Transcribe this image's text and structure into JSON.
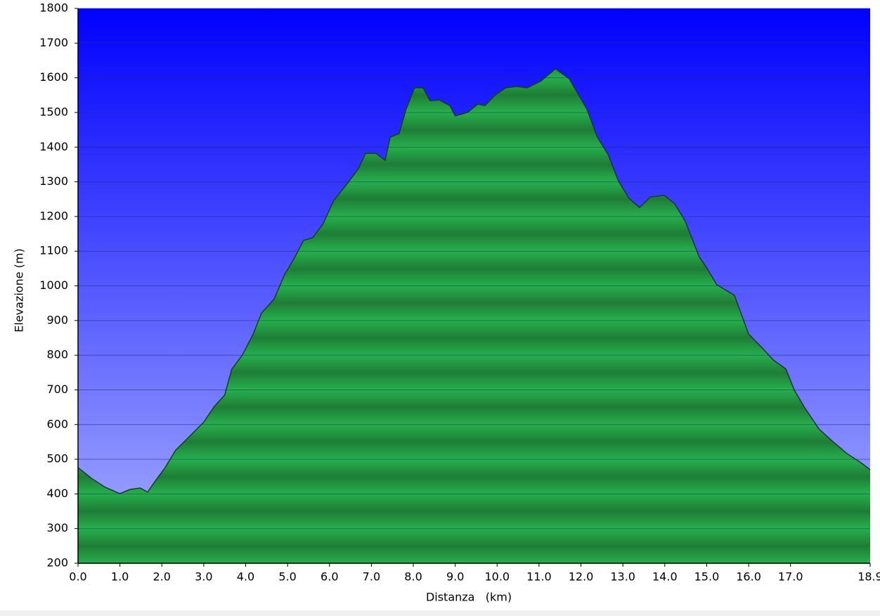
{
  "chart_data": {
    "type": "area",
    "x_label": "Distanza   (km)",
    "y_label": "Elevazione (m)",
    "x": [
      0,
      0.32,
      0.65,
      1.0,
      1.24,
      1.49,
      1.66,
      1.83,
      2.08,
      2.33,
      2.67,
      3.0,
      3.25,
      3.5,
      3.67,
      3.92,
      4.18,
      4.38,
      4.68,
      4.93,
      5.18,
      5.38,
      5.6,
      5.85,
      6.1,
      6.44,
      6.69,
      6.86,
      7.11,
      7.33,
      7.45,
      7.66,
      7.83,
      8.03,
      8.23,
      8.4,
      8.62,
      8.87,
      9.0,
      9.29,
      9.54,
      9.71,
      9.96,
      10.21,
      10.46,
      10.72,
      11.05,
      11.39,
      11.72,
      12.14,
      12.39,
      12.65,
      12.9,
      13.15,
      13.4,
      13.65,
      13.99,
      14.24,
      14.49,
      14.82,
      14.99,
      15.24,
      15.66,
      16.0,
      16.33,
      16.59,
      16.89,
      17.09,
      17.34,
      17.68,
      18.01,
      18.35,
      18.68,
      18.9
    ],
    "values": [
      476,
      445,
      419,
      401,
      413,
      417,
      405,
      435,
      476,
      526,
      567,
      607,
      652,
      685,
      760,
      800,
      861,
      922,
      962,
      1033,
      1084,
      1131,
      1139,
      1179,
      1246,
      1297,
      1338,
      1382,
      1382,
      1362,
      1429,
      1439,
      1510,
      1571,
      1571,
      1534,
      1536,
      1520,
      1490,
      1500,
      1524,
      1520,
      1551,
      1571,
      1575,
      1571,
      1591,
      1626,
      1597,
      1510,
      1429,
      1378,
      1301,
      1252,
      1226,
      1256,
      1261,
      1236,
      1186,
      1084,
      1054,
      1003,
      973,
      861,
      820,
      786,
      760,
      699,
      648,
      587,
      551,
      516,
      490,
      470
    ],
    "color": "#22a848",
    "xlim": [
      0,
      18.9
    ],
    "xticks": [
      {
        "value": 0,
        "label": "0.0"
      },
      {
        "value": 1,
        "label": "1.0"
      },
      {
        "value": 2,
        "label": "2.0"
      },
      {
        "value": 3,
        "label": "3.0"
      },
      {
        "value": 4,
        "label": "4.0"
      },
      {
        "value": 5,
        "label": "5.0"
      },
      {
        "value": 6,
        "label": "6.0"
      },
      {
        "value": 7,
        "label": "7.0"
      },
      {
        "value": 8,
        "label": "8.0"
      },
      {
        "value": 9,
        "label": "9.0"
      },
      {
        "value": 10,
        "label": "10.0"
      },
      {
        "value": 11,
        "label": "11.0"
      },
      {
        "value": 12,
        "label": "12.0"
      },
      {
        "value": 13,
        "label": "13.0"
      },
      {
        "value": 14,
        "label": "14.0"
      },
      {
        "value": 15,
        "label": "15.0"
      },
      {
        "value": 16,
        "label": "16.0"
      },
      {
        "value": 17,
        "label": "17.0"
      },
      {
        "value": 18.9,
        "label": "18.9"
      }
    ],
    "ylim": [
      200,
      1800
    ],
    "yticks": [
      200,
      300,
      400,
      500,
      600,
      700,
      800,
      900,
      1000,
      1100,
      1200,
      1300,
      1400,
      1500,
      1600,
      1700,
      1800
    ],
    "grid": true
  }
}
